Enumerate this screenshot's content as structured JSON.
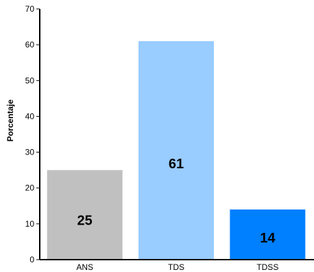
{
  "chart_data": {
    "type": "bar",
    "categories": [
      "ANS",
      "TDS",
      "TDSS"
    ],
    "values": [
      25,
      61,
      14
    ],
    "data_labels": [
      "25",
      "61",
      "14"
    ],
    "colors": [
      "#c0c0c0",
      "#99ccff",
      "#0080ff"
    ],
    "title": "",
    "xlabel": "",
    "ylabel": "Porcentaje",
    "ylim": [
      0,
      70
    ],
    "yticks": [
      0,
      10,
      20,
      30,
      40,
      50,
      60,
      70
    ],
    "grid": false,
    "legend": false
  }
}
